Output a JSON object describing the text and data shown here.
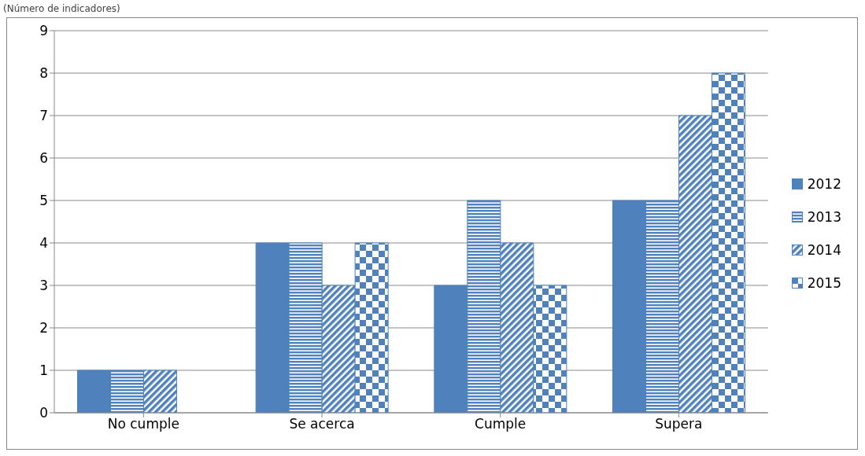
{
  "chart_data": {
    "type": "bar",
    "subtitle": "(Número de indicadores)",
    "categories": [
      "No cumple",
      "Se acerca",
      "Cumple",
      "Supera"
    ],
    "series": [
      {
        "name": "2012",
        "color": "#4f81bd",
        "values": [
          1,
          4,
          3,
          5
        ]
      },
      {
        "name": "2013",
        "color": "#4f81bd",
        "values": [
          1,
          4,
          5,
          5
        ]
      },
      {
        "name": "2014",
        "color": "#4f81bd",
        "values": [
          1,
          3,
          4,
          7
        ]
      },
      {
        "name": "2015",
        "color": "#4f81bd",
        "values": [
          0,
          4,
          3,
          8
        ]
      }
    ],
    "ylim": [
      0,
      9
    ],
    "yticks": [
      0,
      1,
      2,
      3,
      4,
      5,
      6,
      7,
      8,
      9
    ],
    "grid": "y",
    "legend": "right"
  }
}
